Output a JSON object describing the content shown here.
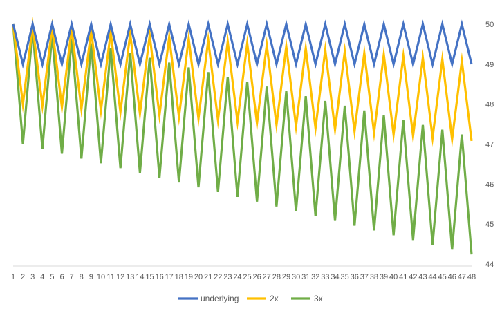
{
  "chart_data": {
    "type": "line",
    "title": "",
    "xlabel": "",
    "ylabel": "",
    "categories": [
      "1",
      "2",
      "3",
      "4",
      "5",
      "6",
      "7",
      "8",
      "9",
      "10",
      "11",
      "12",
      "13",
      "14",
      "15",
      "16",
      "17",
      "18",
      "19",
      "20",
      "21",
      "22",
      "23",
      "24",
      "25",
      "26",
      "27",
      "28",
      "29",
      "30",
      "31",
      "32",
      "33",
      "34",
      "35",
      "36",
      "37",
      "38",
      "39",
      "40",
      "41",
      "42",
      "43",
      "44",
      "45",
      "46",
      "47",
      "48"
    ],
    "ylim": [
      44,
      50
    ],
    "yticks": [
      44,
      45,
      46,
      47,
      48,
      49,
      50
    ],
    "y_axis_side": "right",
    "grid": false,
    "legend_position": "bottom",
    "series": [
      {
        "name": "underlying",
        "color": "#4472C4",
        "values": [
          50,
          49,
          50,
          49,
          50,
          49,
          50,
          49,
          50,
          49,
          50,
          49,
          50,
          49,
          50,
          49,
          50,
          49,
          50,
          49,
          50,
          49,
          50,
          49,
          50,
          49,
          50,
          49,
          50,
          49,
          50,
          49,
          50,
          49,
          50,
          49,
          50,
          49,
          50,
          49,
          50,
          49,
          50,
          49,
          50,
          49,
          50,
          49
        ]
      },
      {
        "name": "2x",
        "color": "#FFC000",
        "values": [
          50,
          48,
          49.96,
          47.96,
          49.92,
          47.92,
          49.88,
          47.88,
          49.84,
          47.84,
          49.8,
          47.8,
          49.76,
          47.76,
          49.72,
          47.72,
          49.68,
          47.68,
          49.64,
          47.64,
          49.6,
          47.6,
          49.56,
          47.56,
          49.52,
          47.52,
          49.48,
          47.48,
          49.44,
          47.44,
          49.4,
          47.4,
          49.36,
          47.36,
          49.32,
          47.32,
          49.28,
          47.28,
          49.24,
          47.24,
          49.2,
          47.2,
          49.16,
          47.16,
          49.12,
          47.12,
          49.08,
          47.08
        ]
      },
      {
        "name": "3x",
        "color": "#70AD47",
        "values": [
          50,
          47,
          49.88,
          46.88,
          49.76,
          46.76,
          49.64,
          46.64,
          49.52,
          46.52,
          49.4,
          46.4,
          49.28,
          46.28,
          49.16,
          46.16,
          49.04,
          46.04,
          48.92,
          45.92,
          48.8,
          45.8,
          48.68,
          45.68,
          48.56,
          45.56,
          48.44,
          45.44,
          48.32,
          45.32,
          48.2,
          45.2,
          48.08,
          45.08,
          47.96,
          44.96,
          47.84,
          44.84,
          47.72,
          44.72,
          47.6,
          44.6,
          47.48,
          44.48,
          47.36,
          44.36,
          47.24,
          44.24
        ]
      }
    ]
  }
}
